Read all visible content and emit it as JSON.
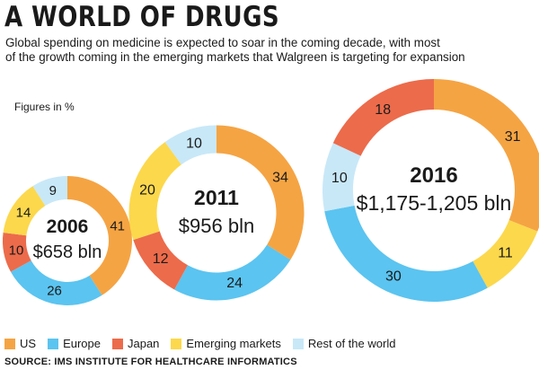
{
  "title": "A WORLD OF DRUGS",
  "subtitle": "Global spending on medicine is expected to soar in the coming decade, with most\nof the growth coming in the emerging markets that Walgreen is targeting for expansion",
  "units_note": "Figures in %",
  "source": "SOURCE: IMS INSTITUTE FOR HEALTHCARE INFORMATICS",
  "colors": {
    "US": "#f5a443",
    "Europe": "#5bc4f0",
    "Japan": "#ec6b4b",
    "Emerging markets": "#fcd84c",
    "Rest of the world": "#c8e8f8"
  },
  "chart_data": {
    "type": "pie",
    "subtype": "donut",
    "categories": [
      "US",
      "Europe",
      "Japan",
      "Emerging markets",
      "Rest of the world"
    ],
    "series": [
      {
        "year": "2006",
        "total": "$658 bln",
        "values": [
          41,
          26,
          10,
          14,
          9
        ]
      },
      {
        "year": "2011",
        "total": "$956 bln",
        "values": [
          34,
          24,
          12,
          20,
          10
        ]
      },
      {
        "year": "2016",
        "total": "$1,175-1,205 bln",
        "values": [
          31,
          30,
          18,
          11,
          10
        ],
        "slice_order": [
          "US",
          "Emerging markets",
          "Europe",
          "Rest of the world",
          "Japan"
        ]
      }
    ]
  }
}
